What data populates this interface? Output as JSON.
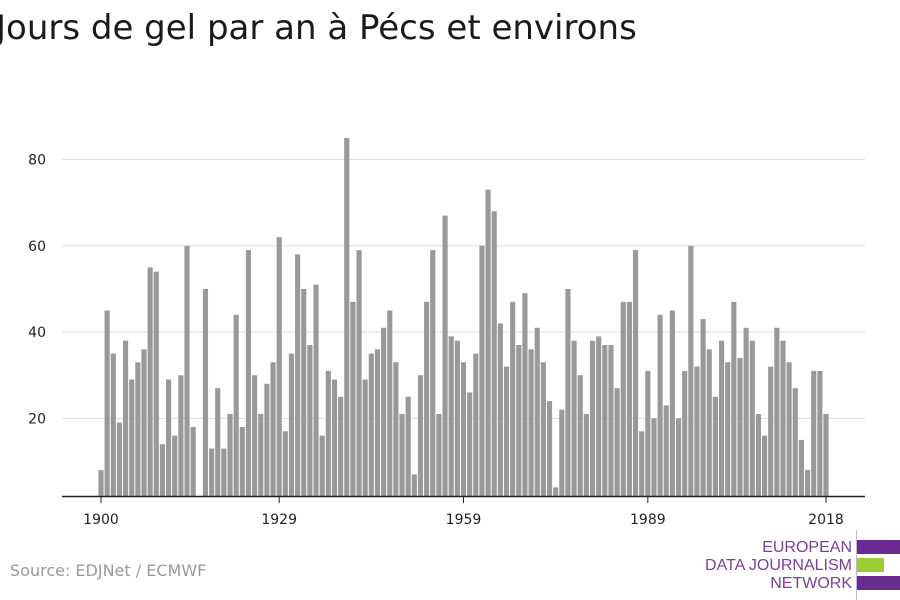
{
  "title": "Jours de gel par an à Pécs et environs",
  "source": "Source: EDJNet / ECMWF",
  "logo": {
    "lines": [
      "EUROPEAN",
      "DATA JOURNALISM",
      "NETWORK"
    ],
    "colors": {
      "purple": "#6b2c91",
      "green": "#9acd32"
    }
  },
  "colors": {
    "bar": "#999999",
    "grid": "#dddddd",
    "axis": "#222222",
    "text": "#222222"
  },
  "chart_data": {
    "type": "bar",
    "title": "Jours de gel par an à Pécs et environs",
    "xlabel": "",
    "ylabel": "",
    "x_ticks": [
      1900,
      1929,
      1959,
      1989,
      2018
    ],
    "y_ticks": [
      20,
      40,
      60,
      80
    ],
    "ylim": [
      2,
      88
    ],
    "xlim": [
      1900,
      2018
    ],
    "grid": true,
    "categories": [
      1900,
      1901,
      1902,
      1903,
      1904,
      1905,
      1906,
      1907,
      1908,
      1909,
      1910,
      1911,
      1912,
      1913,
      1914,
      1915,
      1916,
      1917,
      1918,
      1919,
      1920,
      1921,
      1922,
      1923,
      1924,
      1925,
      1926,
      1927,
      1928,
      1929,
      1930,
      1931,
      1932,
      1933,
      1934,
      1935,
      1936,
      1937,
      1938,
      1939,
      1940,
      1941,
      1942,
      1943,
      1944,
      1945,
      1946,
      1947,
      1948,
      1949,
      1950,
      1951,
      1952,
      1953,
      1954,
      1955,
      1956,
      1957,
      1958,
      1959,
      1960,
      1961,
      1962,
      1963,
      1964,
      1965,
      1966,
      1967,
      1968,
      1969,
      1970,
      1971,
      1972,
      1973,
      1974,
      1975,
      1976,
      1977,
      1978,
      1979,
      1980,
      1981,
      1982,
      1983,
      1984,
      1985,
      1986,
      1987,
      1988,
      1989,
      1990,
      1991,
      1992,
      1993,
      1994,
      1995,
      1996,
      1997,
      1998,
      1999,
      2000,
      2001,
      2002,
      2003,
      2004,
      2005,
      2006,
      2007,
      2008,
      2009,
      2010,
      2011,
      2012,
      2013,
      2014,
      2015,
      2016,
      2017,
      2018
    ],
    "values": [
      8,
      45,
      35,
      19,
      38,
      29,
      33,
      36,
      55,
      54,
      14,
      29,
      16,
      30,
      60,
      18,
      0,
      50,
      13,
      27,
      13,
      21,
      44,
      18,
      59,
      30,
      21,
      28,
      33,
      62,
      17,
      35,
      58,
      50,
      37,
      51,
      16,
      31,
      29,
      25,
      85,
      47,
      59,
      29,
      35,
      36,
      41,
      45,
      33,
      21,
      25,
      7,
      30,
      47,
      59,
      21,
      67,
      39,
      38,
      33,
      26,
      35,
      60,
      73,
      68,
      42,
      32,
      47,
      37,
      49,
      36,
      41,
      33,
      24,
      4,
      22,
      50,
      38,
      30,
      21,
      38,
      39,
      37,
      37,
      27,
      47,
      47,
      59,
      17,
      31,
      20,
      44,
      23,
      45,
      20,
      31,
      60,
      32,
      43,
      36,
      25,
      38,
      33,
      47,
      34,
      41,
      38,
      21,
      16,
      32,
      41,
      38,
      33,
      27,
      15,
      8,
      31,
      31,
      21
    ]
  }
}
